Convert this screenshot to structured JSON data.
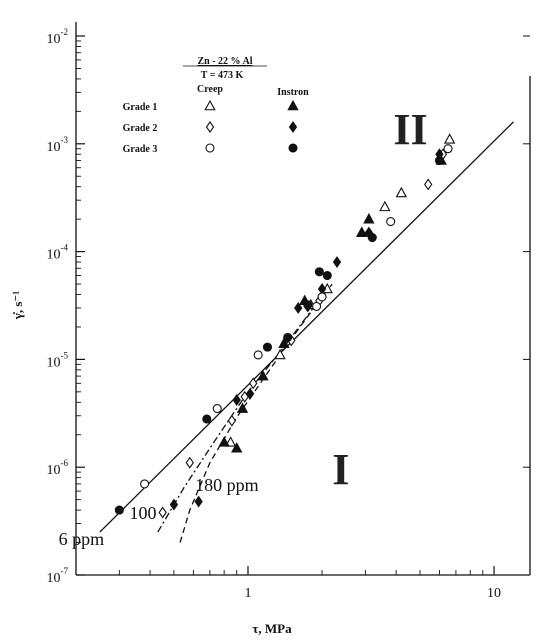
{
  "chart_data": {
    "type": "scatter",
    "title": "",
    "xlabel": "τ, MPa",
    "ylabel": "γ̇, s⁻¹",
    "xscale": "log",
    "yscale": "log",
    "xlim": [
      0.2,
      14
    ],
    "ylim": [
      1e-07,
      0.01
    ],
    "x_ticks": [
      {
        "value": 1,
        "label": "1"
      },
      {
        "value": 10,
        "label": "10"
      }
    ],
    "y_ticks": [
      {
        "value": 1e-07,
        "base": "10",
        "exp": "-7"
      },
      {
        "value": 1e-06,
        "base": "10",
        "exp": "-6"
      },
      {
        "value": 1e-05,
        "base": "10",
        "exp": "-5"
      },
      {
        "value": 0.0001,
        "base": "10",
        "exp": "-4"
      },
      {
        "value": 0.001,
        "base": "10",
        "exp": "-3"
      },
      {
        "value": 0.01,
        "base": "10",
        "exp": "-2"
      }
    ],
    "grid": false,
    "legend": {
      "placement": "top-left",
      "alloy": "Zn - 22 % Al",
      "temperature": "T = 473 K",
      "col_creep": "Creep",
      "col_instron": "Instron",
      "rows": [
        {
          "label": "Grade 1",
          "marker": "triangle"
        },
        {
          "label": "Grade 2",
          "marker": "diamond"
        },
        {
          "label": "Grade 3",
          "marker": "circle"
        }
      ]
    },
    "series": [
      {
        "grade": "Grade 1",
        "test": "Creep",
        "marker": "triangle",
        "filled": false,
        "points": [
          [
            0.85,
            1.7e-06
          ],
          [
            1.35,
            1.1e-05
          ],
          [
            1.8,
            3.2e-05
          ],
          [
            2.1,
            4.5e-05
          ],
          [
            2.9,
            0.00015
          ],
          [
            3.6,
            0.00026
          ],
          [
            4.2,
            0.00035
          ],
          [
            6.6,
            0.0011
          ]
        ]
      },
      {
        "grade": "Grade 1",
        "test": "Instron",
        "marker": "triangle",
        "filled": true,
        "points": [
          [
            0.8,
            1.7e-06
          ],
          [
            0.9,
            1.5e-06
          ],
          [
            0.95,
            3.5e-06
          ],
          [
            1.15,
            7e-06
          ],
          [
            1.4,
            1.4e-05
          ],
          [
            1.7,
            3.5e-05
          ],
          [
            2.9,
            0.00015
          ],
          [
            3.1,
            0.0002
          ],
          [
            6.1,
            0.0007
          ]
        ]
      },
      {
        "grade": "Grade 2",
        "test": "Creep",
        "marker": "diamond",
        "filled": false,
        "points": [
          [
            0.45,
            3.8e-07
          ],
          [
            0.58,
            1.1e-06
          ],
          [
            0.86,
            2.7e-06
          ],
          [
            0.97,
            4.5e-06
          ],
          [
            1.05,
            6e-06
          ],
          [
            1.5,
            1.5e-05
          ],
          [
            1.95,
            3.5e-05
          ],
          [
            5.4,
            0.00042
          ],
          [
            6.2,
            0.0008
          ]
        ]
      },
      {
        "grade": "Grade 2",
        "test": "Instron",
        "marker": "diamond",
        "filled": true,
        "points": [
          [
            0.5,
            4.5e-07
          ],
          [
            0.63,
            4.8e-07
          ],
          [
            0.9,
            4.2e-06
          ],
          [
            1.02,
            4.8e-06
          ],
          [
            1.6,
            3e-05
          ],
          [
            1.75,
            3.1e-05
          ],
          [
            2.0,
            4.5e-05
          ],
          [
            2.3,
            8e-05
          ],
          [
            3.1,
            0.00015
          ],
          [
            6.0,
            0.0008
          ]
        ]
      },
      {
        "grade": "Grade 3",
        "test": "Creep",
        "marker": "circle",
        "filled": false,
        "points": [
          [
            0.38,
            7e-07
          ],
          [
            0.75,
            3.5e-06
          ],
          [
            1.1,
            1.1e-05
          ],
          [
            1.9,
            3.1e-05
          ],
          [
            2.0,
            3.8e-05
          ],
          [
            3.8,
            0.00019
          ],
          [
            6.5,
            0.0009
          ]
        ]
      },
      {
        "grade": "Grade 3",
        "test": "Instron",
        "marker": "circle",
        "filled": true,
        "points": [
          [
            0.3,
            4e-07
          ],
          [
            0.68,
            2.8e-06
          ],
          [
            1.2,
            1.3e-05
          ],
          [
            1.45,
            1.6e-05
          ],
          [
            1.75,
            3.2e-05
          ],
          [
            1.95,
            6.5e-05
          ],
          [
            2.1,
            6e-05
          ],
          [
            3.2,
            0.000135
          ],
          [
            6.0,
            0.0007
          ]
        ]
      }
    ],
    "lines": [
      {
        "label": "6 ppm",
        "style": "solid",
        "points": [
          [
            0.25,
            2.5e-07
          ],
          [
            12,
            0.0016
          ]
        ]
      },
      {
        "label": "100",
        "style": "dash-dot",
        "points": [
          [
            0.43,
            2.5e-07
          ],
          [
            0.55,
            6.5e-07
          ],
          [
            0.75,
            1.9e-06
          ],
          [
            1.0,
            5e-06
          ],
          [
            1.4,
            1.3e-05
          ],
          [
            1.8,
            2.8e-05
          ],
          [
            2.2,
            5e-05
          ]
        ]
      },
      {
        "label": "180 ppm",
        "style": "dashed",
        "points": [
          [
            0.53,
            2e-07
          ],
          [
            0.58,
            4e-07
          ],
          [
            0.7,
            1.1e-06
          ],
          [
            0.9,
            2.9e-06
          ],
          [
            1.2,
            7.5e-06
          ],
          [
            1.6,
            1.9e-05
          ],
          [
            2.0,
            3.8e-05
          ]
        ]
      }
    ],
    "region_labels": [
      {
        "text": "II",
        "x": 3.9,
        "y": 0.001
      },
      {
        "text": "I",
        "x": 2.2,
        "y": 7e-07
      }
    ],
    "line_labels": [
      {
        "text": "6 ppm",
        "x": 0.17,
        "y": 1.9e-07
      },
      {
        "text": "100",
        "x": 0.33,
        "y": 3.3e-07
      },
      {
        "text": "180 ppm",
        "x": 0.61,
        "y": 6e-07
      }
    ]
  }
}
